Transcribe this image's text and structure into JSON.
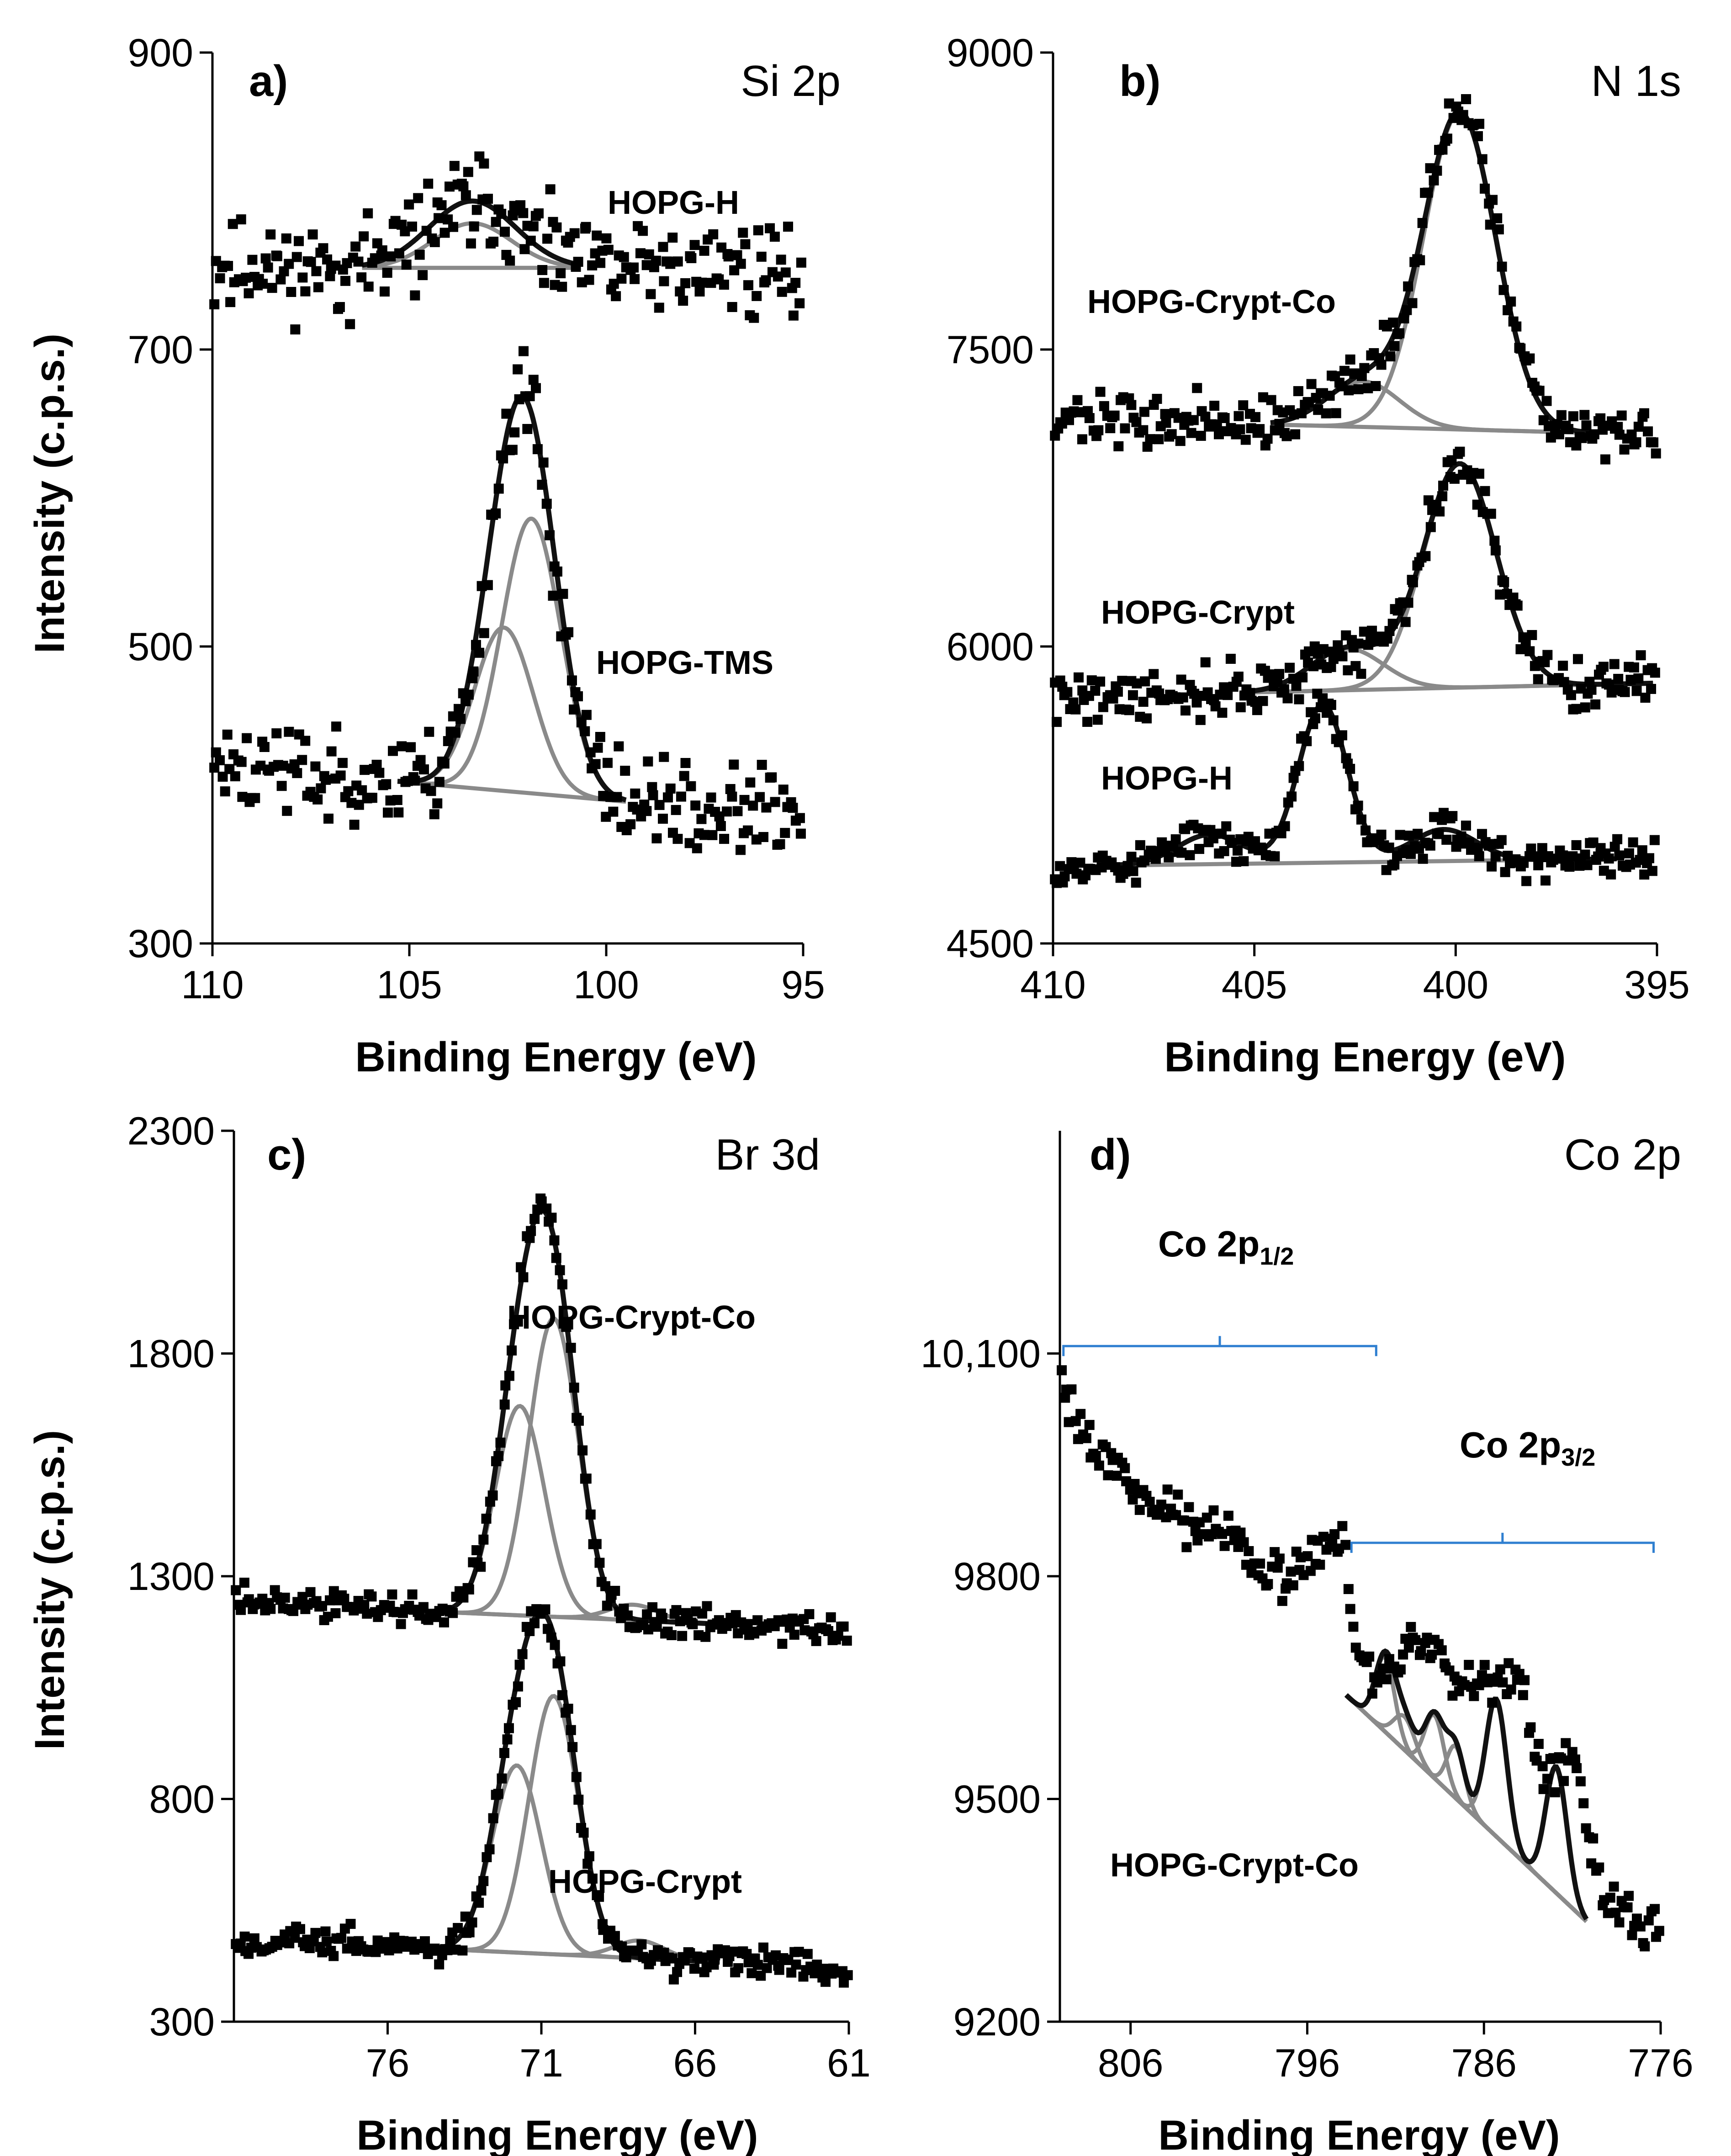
{
  "chart_data": [
    {
      "id": "a",
      "type": "scatter",
      "panel_label": "a)",
      "title": "Si 2p",
      "xlabel": "Binding Energy (eV)",
      "ylabel": "Intensity (c.p.s.)",
      "xlim": [
        110,
        95
      ],
      "ylim": [
        300,
        900
      ],
      "xticks": [
        "110",
        "105",
        "100",
        "95"
      ],
      "xtick_values": [
        110,
        105,
        100,
        95
      ],
      "yticks": [
        "300",
        "500",
        "700",
        "900"
      ],
      "ytick_values": [
        300,
        500,
        700,
        900
      ],
      "annotations": [
        {
          "text": "HOPG-H",
          "x": 101.2,
          "y": 800
        },
        {
          "text": "HOPG-TMS",
          "x": 100.8,
          "y": 483
        }
      ],
      "series": [
        {
          "name": "HOPG-H",
          "baseline_start": 755,
          "baseline_end": 755,
          "noise": 22,
          "peaks": [
            [
              103.4,
              45,
              1.1
            ]
          ],
          "fits": [
            [
              103.4,
              30,
              1.0
            ]
          ],
          "fit_range": [
            106.2,
            100.7
          ],
          "x_range": [
            110,
            95
          ],
          "seed": 11
        },
        {
          "name": "HOPG-TMS",
          "baseline_start": 420,
          "baseline_end": 385,
          "noise": 22,
          "peaks": [
            [
              102.6,
              110,
              0.75
            ],
            [
              101.9,
              185,
              0.75
            ]
          ],
          "fits": [
            [
              102.6,
              110,
              0.75
            ],
            [
              101.9,
              185,
              0.75
            ]
          ],
          "fit_range": [
            105.3,
            99.5
          ],
          "x_range": [
            110,
            95
          ],
          "seed": 23
        }
      ]
    },
    {
      "id": "b",
      "type": "scatter",
      "panel_label": "b)",
      "title": "N 1s",
      "xlabel": "Binding Energy (eV)",
      "ylabel": "",
      "xlim": [
        410,
        395
      ],
      "ylim": [
        4500,
        9000
      ],
      "xticks": [
        "410",
        "405",
        "400",
        "395"
      ],
      "xtick_values": [
        410,
        405,
        400,
        395
      ],
      "yticks": [
        "4500",
        "6000",
        "7500",
        "9000"
      ],
      "ytick_values": [
        4500,
        6000,
        7500,
        9000
      ],
      "annotations": [
        {
          "text": "HOPG-Crypt-Co",
          "x": 407.3,
          "y": 7720
        },
        {
          "text": "HOPG-Crypt",
          "x": 406.8,
          "y": 6170
        },
        {
          "text": "HOPG-H",
          "x": 406.9,
          "y": 5240
        }
      ],
      "series": [
        {
          "name": "HOPG-Crypt-Co",
          "baseline_start": 7150,
          "baseline_end": 7070,
          "noise": 90,
          "peaks": [
            [
              399.9,
              1600,
              0.9
            ],
            [
              402.3,
              230,
              0.9
            ]
          ],
          "fits": [
            [
              399.9,
              1600,
              0.9
            ],
            [
              402.3,
              230,
              0.9
            ]
          ],
          "fit_range": [
            404.6,
            396.5
          ],
          "x_range": [
            410,
            395
          ],
          "seed": 37
        },
        {
          "name": "HOPG-Crypt",
          "baseline_start": 5745,
          "baseline_end": 5815,
          "noise": 90,
          "peaks": [
            [
              399.9,
              1130,
              0.9
            ],
            [
              402.7,
              210,
              0.9
            ]
          ],
          "fits": [
            [
              399.9,
              1130,
              0.9
            ],
            [
              402.7,
              210,
              0.9
            ]
          ],
          "fit_range": [
            405.0,
            395.1
          ],
          "x_range": [
            410,
            395
          ],
          "seed": 41
        },
        {
          "name": "HOPG-H",
          "baseline_start": 4890,
          "baseline_end": 4930,
          "noise": 70,
          "peaks": [
            [
              403.3,
              800,
              0.6
            ],
            [
              406.1,
              150,
              0.8
            ],
            [
              400.3,
              160,
              0.8
            ]
          ],
          "fits": [],
          "fit_range": [
            408.8,
            396.0
          ],
          "x_range": [
            410,
            395
          ],
          "seed": 53
        }
      ]
    },
    {
      "id": "c",
      "type": "scatter",
      "panel_label": "c)",
      "title": "Br 3d",
      "xlabel": "Binding Energy (eV)",
      "ylabel": "Intensity (c.p.s.)",
      "xlim": [
        81,
        61
      ],
      "ylim": [
        300,
        2300
      ],
      "xticks": [
        "76",
        "71",
        "66",
        "61"
      ],
      "xtick_values": [
        76,
        71,
        66,
        61
      ],
      "yticks": [
        "300",
        "800",
        "1300",
        "1800",
        "2300"
      ],
      "ytick_values": [
        300,
        800,
        1300,
        1800,
        2300
      ],
      "annotations": [
        {
          "text": "HOPG-Crypt-Co",
          "x": 67.2,
          "y": 1880
        },
        {
          "text": "HOPG-Crypt",
          "x": 66.2,
          "y": 880
        }
      ],
      "series": [
        {
          "name": "HOPG-Crypt-Co",
          "baseline_start": 1240,
          "baseline_end": 1180,
          "noise": 25,
          "peaks": [
            [
              70.6,
              670,
              0.8
            ],
            [
              71.7,
              470,
              0.8
            ]
          ],
          "fits": [
            [
              70.6,
              670,
              0.8
            ],
            [
              71.7,
              470,
              0.8
            ],
            [
              68.0,
              35,
              0.8
            ]
          ],
          "fit_range": [
            75.5,
            65.5
          ],
          "x_range": [
            81,
            61
          ],
          "seed": 61
        },
        {
          "name": "HOPG-Crypt",
          "baseline_start": 485,
          "baseline_end": 420,
          "noise": 25,
          "peaks": [
            [
              70.6,
              580,
              0.8
            ],
            [
              71.8,
              420,
              0.8
            ]
          ],
          "fits": [
            [
              70.6,
              580,
              0.8
            ],
            [
              71.8,
              420,
              0.8
            ],
            [
              67.8,
              40,
              0.8
            ]
          ],
          "fit_range": [
            75.7,
            65.2
          ],
          "x_range": [
            81,
            61
          ],
          "seed": 67
        }
      ]
    },
    {
      "id": "d",
      "type": "scatter",
      "panel_label": "d)",
      "title": "Co 2p",
      "xlabel": "Binding Energy (eV)",
      "ylabel": "",
      "xlim": [
        810,
        776
      ],
      "ylim": [
        9200,
        10400
      ],
      "xticks": [
        "806",
        "796",
        "786",
        "776"
      ],
      "xtick_values": [
        806,
        796,
        786,
        776
      ],
      "yticks": [
        "9200",
        "9500",
        "9800",
        "10,100"
      ],
      "ytick_values": [
        9200,
        9500,
        9800,
        10100
      ],
      "annotations": [
        {
          "text": "HOPG-Crypt-Co",
          "x": 796.4,
          "y": 9410
        }
      ],
      "brackets": [
        {
          "label_main": "Co 2p",
          "label_sub": "1/2",
          "x_start": 809.8,
          "x_end": 792.1,
          "y": 10110
        },
        {
          "label_main": "Co 2p",
          "label_sub": "3/2",
          "x_start": 793.5,
          "x_end": 776.4,
          "y": 9845
        }
      ],
      "series": [
        {
          "name": "HOPG-Crypt-Co",
          "noise": 22,
          "profile": [
            [
              810,
              10070
            ],
            [
              809,
              10010
            ],
            [
              807,
              9950
            ],
            [
              805,
              9900
            ],
            [
              803,
              9880
            ],
            [
              801,
              9860
            ],
            [
              799,
              9830
            ],
            [
              797.5,
              9800
            ],
            [
              795,
              9840
            ],
            [
              794,
              9860
            ],
            [
              793.5,
              9750
            ],
            [
              793,
              9680
            ],
            [
              791.5,
              9660
            ],
            [
              790,
              9720
            ],
            [
              789,
              9700
            ],
            [
              787.5,
              9650
            ],
            [
              786,
              9660
            ],
            [
              785,
              9650
            ],
            [
              784,
              9680
            ],
            [
              783,
              9540
            ],
            [
              782,
              9520
            ],
            [
              781,
              9560
            ],
            [
              780,
              9450
            ],
            [
              779,
              9360
            ],
            [
              778,
              9340
            ],
            [
              776.5,
              9320
            ]
          ],
          "fit_range": [
            793.8,
            780.2
          ],
          "baseline_fit": [
            [
              793.8,
              9640
            ],
            [
              780.2,
              9335
            ]
          ],
          "fits": [
            [
              791.6,
              100,
              0.55
            ],
            [
              788.8,
              85,
              0.55
            ],
            [
              787.6,
              70,
              0.5
            ],
            [
              785.3,
              185,
              0.6
            ],
            [
              781.9,
              170,
              0.6
            ],
            [
              790.5,
              45,
              0.6
            ]
          ],
          "seed": 79
        }
      ]
    }
  ]
}
